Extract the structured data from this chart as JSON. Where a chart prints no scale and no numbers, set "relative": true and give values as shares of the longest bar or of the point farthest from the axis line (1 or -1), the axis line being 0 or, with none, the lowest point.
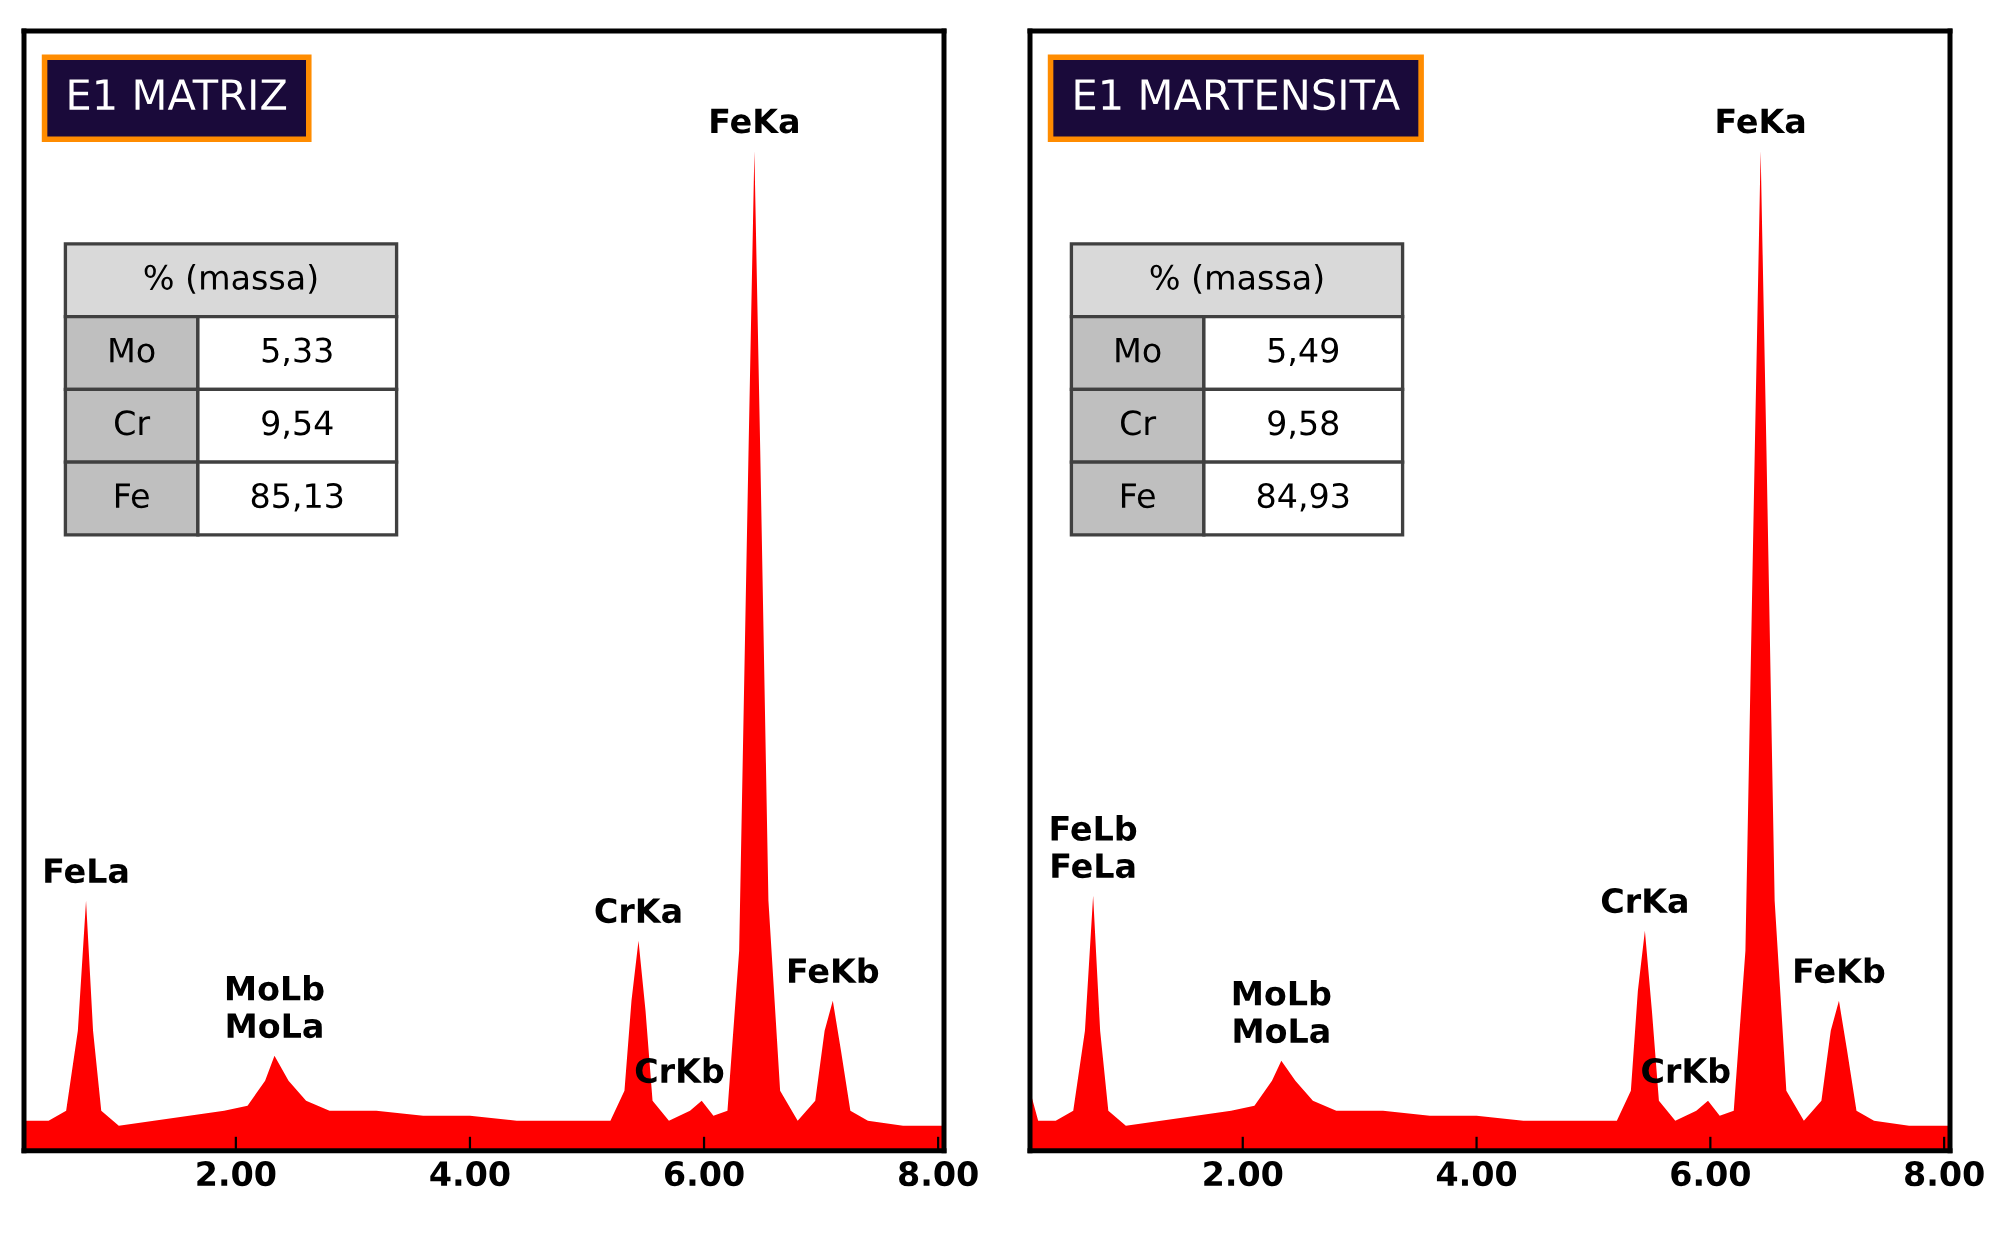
{
  "chart_data": [
    {
      "type": "area",
      "title": "E1 MATRIZ",
      "relative": true,
      "color": "#ff0000",
      "grid": false,
      "xlim": [
        0.19,
        8.05
      ],
      "xticks": [
        {
          "value": 2,
          "label": "2.00"
        },
        {
          "value": 4,
          "label": "4.00"
        },
        {
          "value": 6,
          "label": "6.00"
        },
        {
          "value": 8,
          "label": "8.00"
        }
      ],
      "x": [
        0.19,
        0.4,
        0.55,
        0.65,
        0.72,
        0.78,
        0.85,
        1.0,
        1.3,
        1.6,
        1.9,
        2.1,
        2.25,
        2.33,
        2.45,
        2.6,
        2.8,
        3.2,
        3.6,
        4.0,
        4.4,
        4.8,
        5.2,
        5.32,
        5.38,
        5.44,
        5.5,
        5.56,
        5.7,
        5.88,
        5.98,
        6.08,
        6.2,
        6.3,
        6.38,
        6.43,
        6.48,
        6.55,
        6.65,
        6.8,
        6.95,
        7.03,
        7.1,
        7.17,
        7.25,
        7.4,
        7.7,
        8.05
      ],
      "values": [
        0.03,
        0.03,
        0.04,
        0.12,
        0.25,
        0.12,
        0.04,
        0.025,
        0.03,
        0.035,
        0.04,
        0.045,
        0.07,
        0.095,
        0.07,
        0.05,
        0.04,
        0.04,
        0.035,
        0.035,
        0.03,
        0.03,
        0.03,
        0.06,
        0.15,
        0.21,
        0.14,
        0.05,
        0.03,
        0.04,
        0.05,
        0.035,
        0.04,
        0.2,
        0.7,
        1.0,
        0.7,
        0.25,
        0.06,
        0.03,
        0.05,
        0.12,
        0.15,
        0.1,
        0.04,
        0.03,
        0.025,
        0.025
      ],
      "annotations": [
        "% (massa)",
        "Mo",
        "5,33",
        "Cr",
        "9,54",
        "Fe",
        "85,13",
        {
          "text": "FeLa",
          "x": 0.72,
          "y": 0.25
        },
        {
          "text": "MoLb\nMoLa",
          "x": 2.33,
          "y": 0.095
        },
        {
          "text": "CrKa",
          "x": 5.44,
          "y": 0.21
        },
        {
          "text": "CrKb",
          "x": 5.98,
          "y": 0.05
        },
        {
          "text": "FeKa",
          "x": 6.43,
          "y": 1.0
        },
        {
          "text": "FeKb",
          "x": 7.1,
          "y": 0.15
        }
      ]
    },
    {
      "type": "area",
      "title": "E1 MARTENSITA",
      "relative": true,
      "color": "#ff0000",
      "grid": false,
      "xlim": [
        0.18,
        8.05
      ],
      "xticks": [
        {
          "value": 2,
          "label": "2.00"
        },
        {
          "value": 4,
          "label": "4.00"
        },
        {
          "value": 6,
          "label": "6.00"
        },
        {
          "value": 8,
          "label": "8.00"
        }
      ],
      "x": [
        0.18,
        0.25,
        0.4,
        0.55,
        0.65,
        0.72,
        0.78,
        0.85,
        1.0,
        1.3,
        1.6,
        1.9,
        2.1,
        2.25,
        2.33,
        2.45,
        2.6,
        2.8,
        3.2,
        3.6,
        4.0,
        4.4,
        4.8,
        5.2,
        5.32,
        5.38,
        5.44,
        5.5,
        5.56,
        5.7,
        5.88,
        5.98,
        6.08,
        6.2,
        6.3,
        6.38,
        6.43,
        6.48,
        6.55,
        6.65,
        6.8,
        6.95,
        7.03,
        7.1,
        7.17,
        7.25,
        7.4,
        7.7,
        8.05
      ],
      "values": [
        0.06,
        0.03,
        0.03,
        0.04,
        0.12,
        0.255,
        0.12,
        0.04,
        0.025,
        0.03,
        0.035,
        0.04,
        0.045,
        0.07,
        0.09,
        0.07,
        0.05,
        0.04,
        0.04,
        0.035,
        0.035,
        0.03,
        0.03,
        0.03,
        0.06,
        0.16,
        0.22,
        0.14,
        0.05,
        0.03,
        0.04,
        0.05,
        0.035,
        0.04,
        0.2,
        0.7,
        1.0,
        0.7,
        0.25,
        0.06,
        0.03,
        0.05,
        0.12,
        0.15,
        0.1,
        0.04,
        0.03,
        0.025,
        0.025
      ],
      "annotations": [
        "% (massa)",
        "Mo",
        "5,49",
        "Cr",
        "9,58",
        "Fe",
        "84,93",
        {
          "text": "FeLb\nFeLa",
          "x": 0.72,
          "y": 0.255
        },
        {
          "text": "MoLb\nMoLa",
          "x": 2.33,
          "y": 0.09
        },
        {
          "text": "CrKa",
          "x": 5.44,
          "y": 0.22
        },
        {
          "text": "CrKb",
          "x": 5.98,
          "y": 0.05
        },
        {
          "text": "FeKa",
          "x": 6.43,
          "y": 1.0
        },
        {
          "text": "FeKb",
          "x": 7.1,
          "y": 0.15
        }
      ]
    }
  ]
}
